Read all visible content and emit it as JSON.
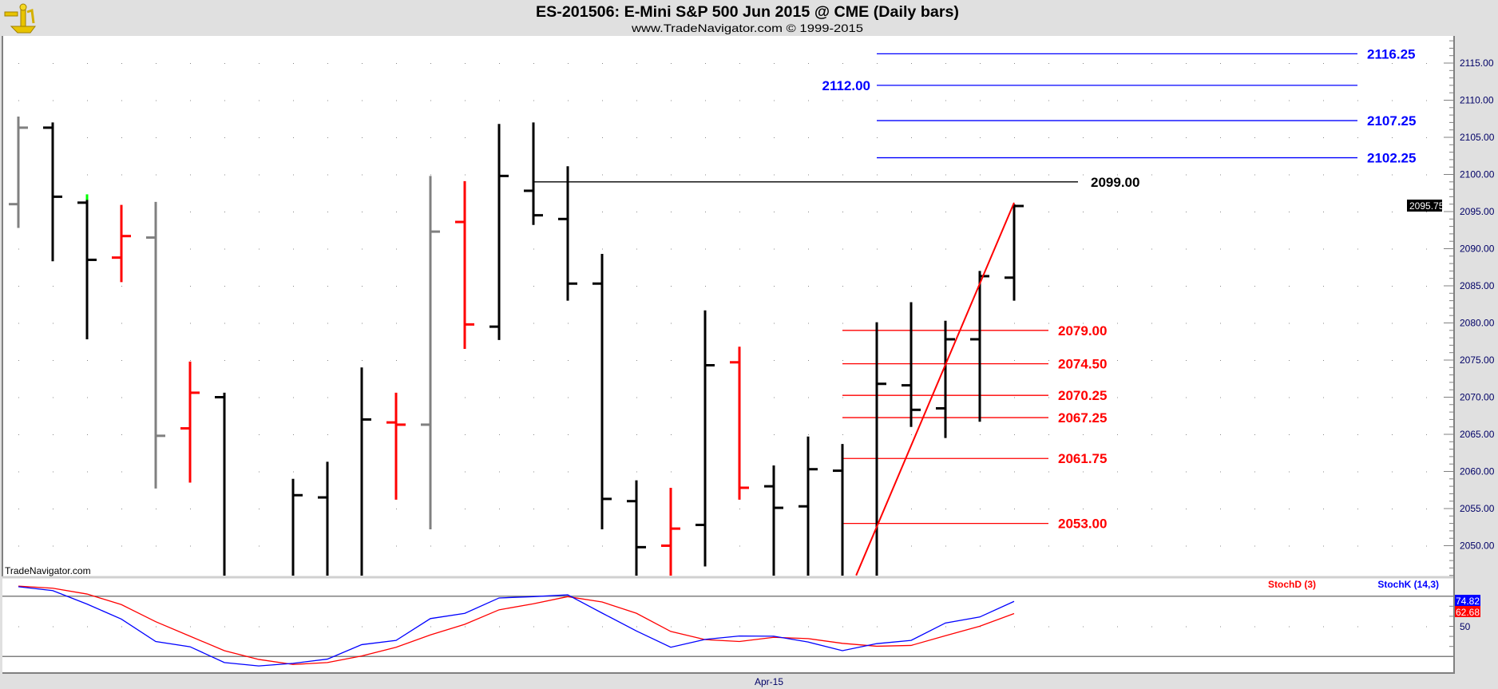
{
  "header": {
    "title": "ES-201506:  E-Mini S&P 500 Jun 2015 @ CME  (Daily bars)",
    "subtitle": "www.TradeNavigator.com © 1999-2015",
    "logo_icon": "sextant-icon"
  },
  "watermark": "TradeNavigator.com",
  "colors": {
    "up_bar": "#000000",
    "down_bar": "#ff0000",
    "neutral_bar": "#808080",
    "stoch_k": "#0000ff",
    "stoch_d": "#ff0000",
    "blue_levels": "#0000ff",
    "red_levels": "#ff0000",
    "black_level": "#000000",
    "panel_bg": "#e0e0e0"
  },
  "price_axis": {
    "ticks": [
      "2115.00",
      "2110.00",
      "2105.00",
      "2100.00",
      "2095.00",
      "2090.00",
      "2085.00",
      "2080.00",
      "2075.00",
      "2070.00",
      "2065.00",
      "2060.00",
      "2055.00",
      "2050.00"
    ],
    "last_price": "2095.75"
  },
  "x_axis": {
    "labels": [
      "Apr-15"
    ]
  },
  "chart_data": [
    {
      "type": "ohlc",
      "title": "ES-201506:  E-Mini S&P 500 Jun 2015 @ CME  (Daily bars)",
      "ylim": [
        2046,
        2118.5
      ],
      "grid": true,
      "bars": [
        {
          "o": 2096.0,
          "h": 2107.8,
          "l": 2092.8,
          "c": 2106.3,
          "color": "gray"
        },
        {
          "o": 2106.3,
          "h": 2107.0,
          "l": 2088.3,
          "c": 2097.0,
          "color": "black"
        },
        {
          "o": 2096.2,
          "h": 2097.0,
          "l": 2077.8,
          "c": 2088.5,
          "color": "black",
          "marker": "green"
        },
        {
          "o": 2088.8,
          "h": 2095.9,
          "l": 2085.5,
          "c": 2091.7,
          "color": "red"
        },
        {
          "o": 2091.5,
          "h": 2096.3,
          "l": 2057.7,
          "c": 2064.8,
          "color": "gray"
        },
        {
          "o": 2065.8,
          "h": 2074.8,
          "l": 2058.5,
          "c": 2070.6,
          "color": "red"
        },
        {
          "o": 2070.0,
          "h": 2070.6,
          "l": null,
          "c": null,
          "color": "black"
        },
        null,
        {
          "o": null,
          "h": 2059.0,
          "l": null,
          "c": 2056.8,
          "color": "black"
        },
        {
          "o": 2056.5,
          "h": 2061.3,
          "l": null,
          "c": null,
          "color": "black"
        },
        {
          "o": null,
          "h": 2074.0,
          "l": null,
          "c": 2067.0,
          "color": "black"
        },
        {
          "o": 2066.6,
          "h": 2070.6,
          "l": 2056.2,
          "c": 2066.3,
          "color": "red"
        },
        {
          "o": 2066.3,
          "h": 2099.8,
          "l": 2052.2,
          "c": 2092.3,
          "color": "gray"
        },
        {
          "o": 2093.6,
          "h": 2099.1,
          "l": 2076.5,
          "c": 2079.8,
          "color": "red"
        },
        {
          "o": 2079.5,
          "h": 2106.8,
          "l": 2077.7,
          "c": 2099.8,
          "color": "black"
        },
        {
          "o": 2097.8,
          "h": 2107.0,
          "l": 2093.2,
          "c": 2094.5,
          "color": "black"
        },
        {
          "o": 2094.0,
          "h": 2101.1,
          "l": 2083.0,
          "c": 2085.3,
          "color": "black"
        },
        {
          "o": 2085.3,
          "h": 2089.3,
          "l": 2052.2,
          "c": 2056.3,
          "color": "black"
        },
        {
          "o": 2056.0,
          "h": 2058.8,
          "l": null,
          "c": 2049.8,
          "color": "black"
        },
        {
          "o": 2050.0,
          "h": 2057.8,
          "l": null,
          "c": 2052.3,
          "color": "red"
        },
        {
          "o": 2052.8,
          "h": 2081.7,
          "l": 2047.2,
          "c": 2074.3,
          "color": "black"
        },
        {
          "o": 2074.7,
          "h": 2076.8,
          "l": 2056.2,
          "c": 2057.8,
          "color": "red"
        },
        {
          "o": 2058.0,
          "h": 2060.8,
          "l": null,
          "c": 2055.1,
          "color": "black"
        },
        {
          "o": 2055.3,
          "h": 2064.7,
          "l": null,
          "c": 2060.3,
          "color": "black"
        },
        {
          "o": 2060.1,
          "h": 2063.7,
          "l": null,
          "c": null,
          "color": "black"
        },
        {
          "o": null,
          "h": 2080.1,
          "l": null,
          "c": 2071.8,
          "color": "black"
        },
        {
          "o": 2071.6,
          "h": 2082.8,
          "l": 2066.0,
          "c": 2068.3,
          "color": "black"
        },
        {
          "o": 2068.5,
          "h": 2080.3,
          "l": 2064.5,
          "c": 2077.8,
          "color": "black"
        },
        {
          "o": 2077.8,
          "h": 2087.0,
          "l": 2066.7,
          "c": 2086.3,
          "color": "black"
        },
        {
          "o": 2086.1,
          "h": 2096.0,
          "l": 2083.0,
          "c": 2095.75,
          "color": "black"
        }
      ],
      "levels": [
        {
          "value": 2116.25,
          "label": "2116.25",
          "color": "blue"
        },
        {
          "value": 2112.0,
          "label": "2112.00",
          "color": "blue"
        },
        {
          "value": 2107.25,
          "label": "2107.25",
          "color": "blue"
        },
        {
          "value": 2102.25,
          "label": "2102.25",
          "color": "blue"
        },
        {
          "value": 2099.0,
          "label": "2099.00",
          "color": "black"
        },
        {
          "value": 2079.0,
          "label": "2079.00",
          "color": "red"
        },
        {
          "value": 2074.5,
          "label": "2074.50",
          "color": "red"
        },
        {
          "value": 2070.25,
          "label": "2070.25",
          "color": "red"
        },
        {
          "value": 2067.25,
          "label": "2067.25",
          "color": "red"
        },
        {
          "value": 2061.75,
          "label": "2061.75",
          "color": "red"
        },
        {
          "value": 2053.0,
          "label": "2053.00",
          "color": "red"
        }
      ],
      "trendline": {
        "from": {
          "bar": 24.4,
          "price": 2046
        },
        "to": {
          "bar": 29,
          "price": 2096.2
        },
        "color": "red"
      }
    },
    {
      "type": "line",
      "ylim": [
        0,
        100
      ],
      "reference_lines": [
        20,
        50,
        80
      ],
      "axis_labels": [
        "50"
      ],
      "legend_placement": "top-right",
      "series": [
        {
          "name": "StochD (3)",
          "color": "#ff0000",
          "last": "62.68",
          "values": [
            90.0,
            87.9,
            82.1,
            71.6,
            54.6,
            40.2,
            25.8,
            17.1,
            12.1,
            14.0,
            20.5,
            29.2,
            41.5,
            52.0,
            66.4,
            72.4,
            79.5,
            74.2,
            63.0,
            44.9,
            36.8,
            34.9,
            39.1,
            37.8,
            33.1,
            30.2,
            31.0,
            40.7,
            50.1,
            62.68
          ]
        },
        {
          "name": "StochK (14,3)",
          "color": "#0000ff",
          "last": "74.82",
          "values": [
            89.4,
            85.5,
            72.1,
            57.2,
            34.9,
            29.7,
            14.0,
            10.6,
            13.2,
            17.4,
            31.8,
            36.0,
            57.7,
            62.9,
            78.2,
            79.5,
            81.3,
            63.2,
            45.4,
            29.2,
            37.0,
            40.4,
            40.2,
            34.4,
            25.8,
            32.8,
            36.0,
            53.3,
            59.3,
            74.82
          ]
        }
      ]
    }
  ]
}
